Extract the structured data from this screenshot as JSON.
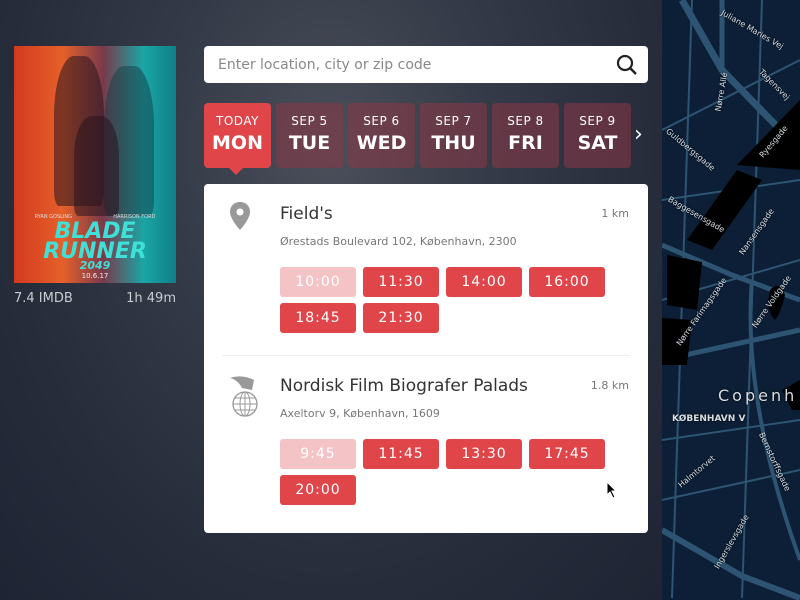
{
  "movie": {
    "title": "BLADE RUNNER",
    "subtitle": "2049",
    "release": "10.6.17",
    "cast": [
      "RYAN GOSLING",
      "HARRISON FORD"
    ],
    "rating": "7.4 IMDB",
    "duration": "1h 49m"
  },
  "search": {
    "placeholder": "Enter location, city or zip code",
    "value": ""
  },
  "dates": [
    {
      "day": "TODAY",
      "weekday": "MON",
      "active": true
    },
    {
      "day": "SEP 5",
      "weekday": "TUE"
    },
    {
      "day": "SEP 6",
      "weekday": "WED"
    },
    {
      "day": "SEP 7",
      "weekday": "THU"
    },
    {
      "day": "SEP 8",
      "weekday": "FRI"
    },
    {
      "day": "SEP 9",
      "weekday": "SAT"
    }
  ],
  "cinemas": [
    {
      "name": "Field's",
      "distance": "1 km",
      "address": "Ørestads Boulevard 102, København, 2300",
      "icon": "map-pin-icon",
      "times": [
        {
          "t": "10:00",
          "past": true
        },
        {
          "t": "11:30"
        },
        {
          "t": "14:00"
        },
        {
          "t": "16:00"
        },
        {
          "t": "18:45"
        },
        {
          "t": "21:30"
        }
      ]
    },
    {
      "name": "Nordisk Film Biografer Palads",
      "distance": "1.8 km",
      "address": "Axeltorv 9, København, 1609",
      "icon": "nordisk-film-globe-icon",
      "times": [
        {
          "t": "9:45",
          "past": true
        },
        {
          "t": "11:45"
        },
        {
          "t": "13:30"
        },
        {
          "t": "17:45"
        },
        {
          "t": "20:00"
        }
      ]
    }
  ],
  "map": {
    "city": "Copenh",
    "district": "KØBENHAVN V",
    "streets": [
      "Juliane Maries Vej",
      "Tagensvej",
      "Nørre Allé",
      "Guldbergsgade",
      "Ryesgade",
      "Baggesensgade",
      "Nansensgade",
      "Nørre Farimagsgade",
      "Nørre Voldgade",
      "Bernstorffsgade",
      "Halmtorvet",
      "Ingerslevsgade"
    ]
  },
  "colors": {
    "accent": "#e0454a",
    "past": "#f3c3c5",
    "map": "#0c1f36"
  }
}
